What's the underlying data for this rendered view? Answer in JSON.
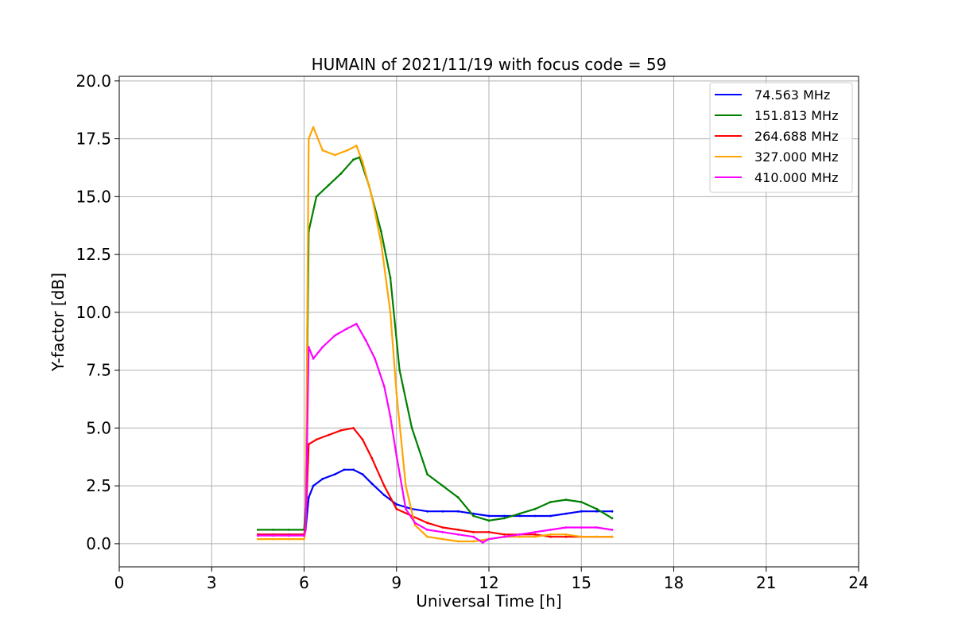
{
  "chart_data": {
    "type": "line",
    "title": "HUMAIN of 2021/11/19 with focus code = 59",
    "xlabel": "Universal Time [h]",
    "ylabel": "Y-factor [dB]",
    "xlim": [
      0,
      24
    ],
    "ylim": [
      -1.0,
      20.2
    ],
    "xticks": [
      0,
      3,
      6,
      9,
      12,
      15,
      18,
      21,
      24
    ],
    "xtick_labels": [
      "0",
      "3",
      "6",
      "9",
      "12",
      "15",
      "18",
      "21",
      "24"
    ],
    "yticks": [
      0,
      2.5,
      5,
      7.5,
      10,
      12.5,
      15,
      17.5,
      20
    ],
    "ytick_labels": [
      "0.0",
      "2.5",
      "5.0",
      "7.5",
      "10.0",
      "12.5",
      "15.0",
      "17.5",
      "20.0"
    ],
    "grid": true,
    "legend_position": "top-right",
    "series": [
      {
        "name": " 74.563 MHz",
        "color": "#0000ff",
        "x": [
          4.5,
          5.0,
          5.5,
          6.0,
          6.05,
          6.15,
          6.3,
          6.6,
          7.0,
          7.3,
          7.6,
          7.9,
          8.2,
          8.6,
          9.0,
          9.5,
          10.0,
          10.5,
          11.0,
          11.5,
          12.0,
          12.5,
          13.0,
          13.5,
          14.0,
          14.5,
          15.0,
          15.5,
          16.0
        ],
        "y": [
          0.4,
          0.4,
          0.4,
          0.4,
          0.6,
          2.0,
          2.5,
          2.8,
          3.0,
          3.2,
          3.2,
          3.0,
          2.6,
          2.1,
          1.7,
          1.5,
          1.4,
          1.4,
          1.4,
          1.3,
          1.2,
          1.2,
          1.2,
          1.2,
          1.2,
          1.3,
          1.4,
          1.4,
          1.4
        ]
      },
      {
        "name": "151.813 MHz",
        "color": "#008000",
        "x": [
          4.5,
          5.0,
          5.5,
          6.0,
          6.05,
          6.15,
          6.4,
          6.8,
          7.2,
          7.6,
          7.8,
          8.1,
          8.5,
          8.8,
          9.1,
          9.5,
          10.0,
          10.5,
          11.0,
          11.5,
          12.0,
          12.5,
          13.0,
          13.5,
          14.0,
          14.5,
          15.0,
          15.5,
          16.0
        ],
        "y": [
          0.6,
          0.6,
          0.6,
          0.6,
          1.5,
          13.5,
          15.0,
          15.5,
          16.0,
          16.6,
          16.7,
          15.5,
          13.5,
          11.5,
          7.5,
          5.0,
          3.0,
          2.5,
          2.0,
          1.2,
          1.0,
          1.1,
          1.3,
          1.5,
          1.8,
          1.9,
          1.8,
          1.5,
          1.1
        ]
      },
      {
        "name": "264.688 MHz",
        "color": "#ff0000",
        "x": [
          4.5,
          5.0,
          5.5,
          6.0,
          6.05,
          6.15,
          6.4,
          6.8,
          7.2,
          7.6,
          7.9,
          8.2,
          8.6,
          9.0,
          9.5,
          10.0,
          10.5,
          11.0,
          11.5,
          12.0,
          12.5,
          13.0,
          13.5,
          14.0,
          14.5,
          15.0,
          15.5,
          16.0
        ],
        "y": [
          0.4,
          0.4,
          0.4,
          0.4,
          0.8,
          4.3,
          4.5,
          4.7,
          4.9,
          5.0,
          4.5,
          3.7,
          2.5,
          1.5,
          1.2,
          0.9,
          0.7,
          0.6,
          0.5,
          0.5,
          0.4,
          0.4,
          0.4,
          0.3,
          0.3,
          0.3,
          0.3,
          0.3
        ]
      },
      {
        "name": "327.000 MHz",
        "color": "#ffa500",
        "x": [
          4.5,
          5.0,
          5.5,
          6.0,
          6.05,
          6.15,
          6.3,
          6.6,
          7.0,
          7.4,
          7.7,
          7.9,
          8.2,
          8.5,
          8.8,
          9.0,
          9.3,
          9.6,
          10.0,
          10.5,
          11.0,
          11.5,
          12.0,
          12.5,
          13.0,
          13.5,
          14.0,
          14.5,
          15.0,
          15.5,
          16.0
        ],
        "y": [
          0.2,
          0.2,
          0.2,
          0.2,
          0.6,
          17.5,
          18.0,
          17.0,
          16.8,
          17.0,
          17.2,
          16.5,
          15.0,
          13.0,
          10.0,
          6.5,
          2.5,
          0.8,
          0.3,
          0.2,
          0.1,
          0.1,
          0.2,
          0.3,
          0.3,
          0.3,
          0.4,
          0.4,
          0.3,
          0.3,
          0.3
        ]
      },
      {
        "name": "410.000 MHz",
        "color": "#ff00ff",
        "x": [
          4.5,
          5.0,
          5.5,
          6.0,
          6.05,
          6.15,
          6.3,
          6.6,
          7.0,
          7.4,
          7.7,
          8.0,
          8.3,
          8.6,
          8.8,
          9.0,
          9.3,
          9.6,
          10.0,
          10.5,
          11.0,
          11.5,
          11.8,
          12.0,
          12.5,
          13.0,
          13.5,
          14.0,
          14.5,
          15.0,
          15.5,
          16.0
        ],
        "y": [
          0.35,
          0.35,
          0.35,
          0.35,
          0.6,
          8.5,
          8.0,
          8.5,
          9.0,
          9.3,
          9.5,
          8.8,
          8.0,
          6.8,
          5.5,
          3.8,
          1.5,
          0.9,
          0.6,
          0.5,
          0.4,
          0.3,
          0.05,
          0.2,
          0.3,
          0.4,
          0.5,
          0.6,
          0.7,
          0.7,
          0.7,
          0.6
        ]
      }
    ]
  }
}
